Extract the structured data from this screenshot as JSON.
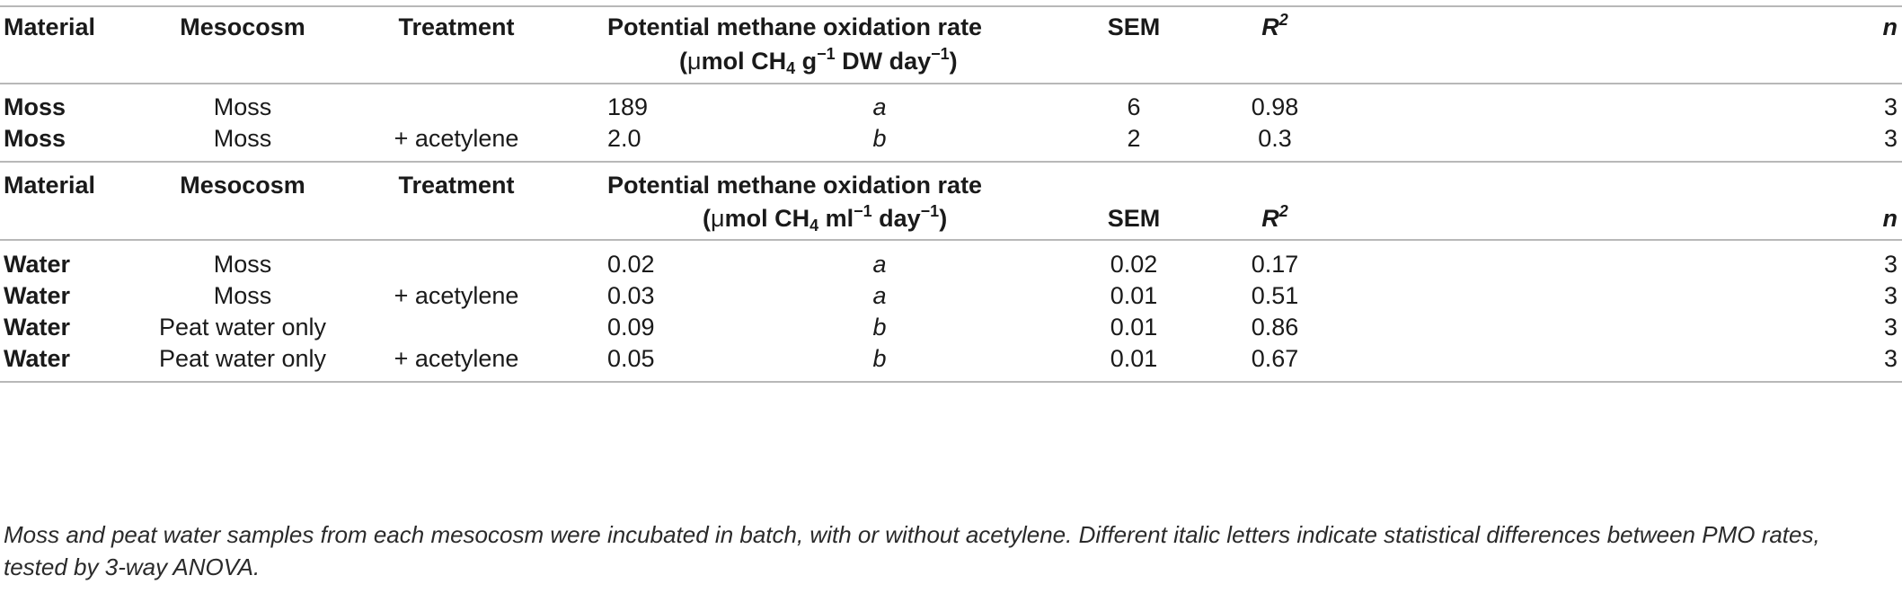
{
  "section1": {
    "headers": {
      "material": "Material",
      "mesocosm": "Mesocosm",
      "treatment": "Treatment",
      "rate": "Potential methane oxidation rate",
      "unit": {
        "open": "(",
        "mu": "μ",
        "mol_ch": "mol CH",
        "sub4": "4",
        "g": " g",
        "sup1": "−1",
        "dw_day": " DW day",
        "sup2": "−1",
        "close": ")"
      },
      "sem": "SEM",
      "r2_base": "R",
      "r2_exp": "2",
      "n": "n"
    },
    "rows": [
      {
        "material": "Moss",
        "mesocosm": "Moss",
        "treatment": "",
        "rate": "189",
        "letter": "a",
        "sem": "6",
        "r2": "0.98",
        "n": "3"
      },
      {
        "material": "Moss",
        "mesocosm": "Moss",
        "treatment": "+ acetylene",
        "rate": "2.0",
        "letter": "b",
        "sem": "2",
        "r2": "0.3",
        "n": "3"
      }
    ]
  },
  "section2": {
    "headers": {
      "material": "Material",
      "mesocosm": "Mesocosm",
      "treatment": "Treatment",
      "rate": "Potential methane oxidation rate",
      "unit": {
        "open": "(",
        "mu": "μ",
        "mol_ch": "mol CH",
        "sub4": "4",
        "ml": " ml",
        "sup1": "−1",
        "day": " day",
        "sup2": "−1",
        "close": ")"
      },
      "sem": "SEM",
      "r2_base": "R",
      "r2_exp": "2",
      "n": "n"
    },
    "rows": [
      {
        "material": "Water",
        "mesocosm": "Moss",
        "treatment": "",
        "rate": "0.02",
        "letter": "a",
        "sem": "0.02",
        "r2": "0.17",
        "n": "3"
      },
      {
        "material": "Water",
        "mesocosm": "Moss",
        "treatment": "+ acetylene",
        "rate": "0.03",
        "letter": "a",
        "sem": "0.01",
        "r2": "0.51",
        "n": "3"
      },
      {
        "material": "Water",
        "mesocosm": "Peat water only",
        "treatment": "",
        "rate": "0.09",
        "letter": "b",
        "sem": "0.01",
        "r2": "0.86",
        "n": "3"
      },
      {
        "material": "Water",
        "mesocosm": "Peat water only",
        "treatment": "+ acetylene",
        "rate": "0.05",
        "letter": "b",
        "sem": "0.01",
        "r2": "0.67",
        "n": "3"
      }
    ]
  },
  "footnote": "Moss and peat water samples from each mesocosm were incubated in batch, with or without acetylene. Different italic letters indicate statistical differences between PMO rates, tested by 3-way ANOVA."
}
